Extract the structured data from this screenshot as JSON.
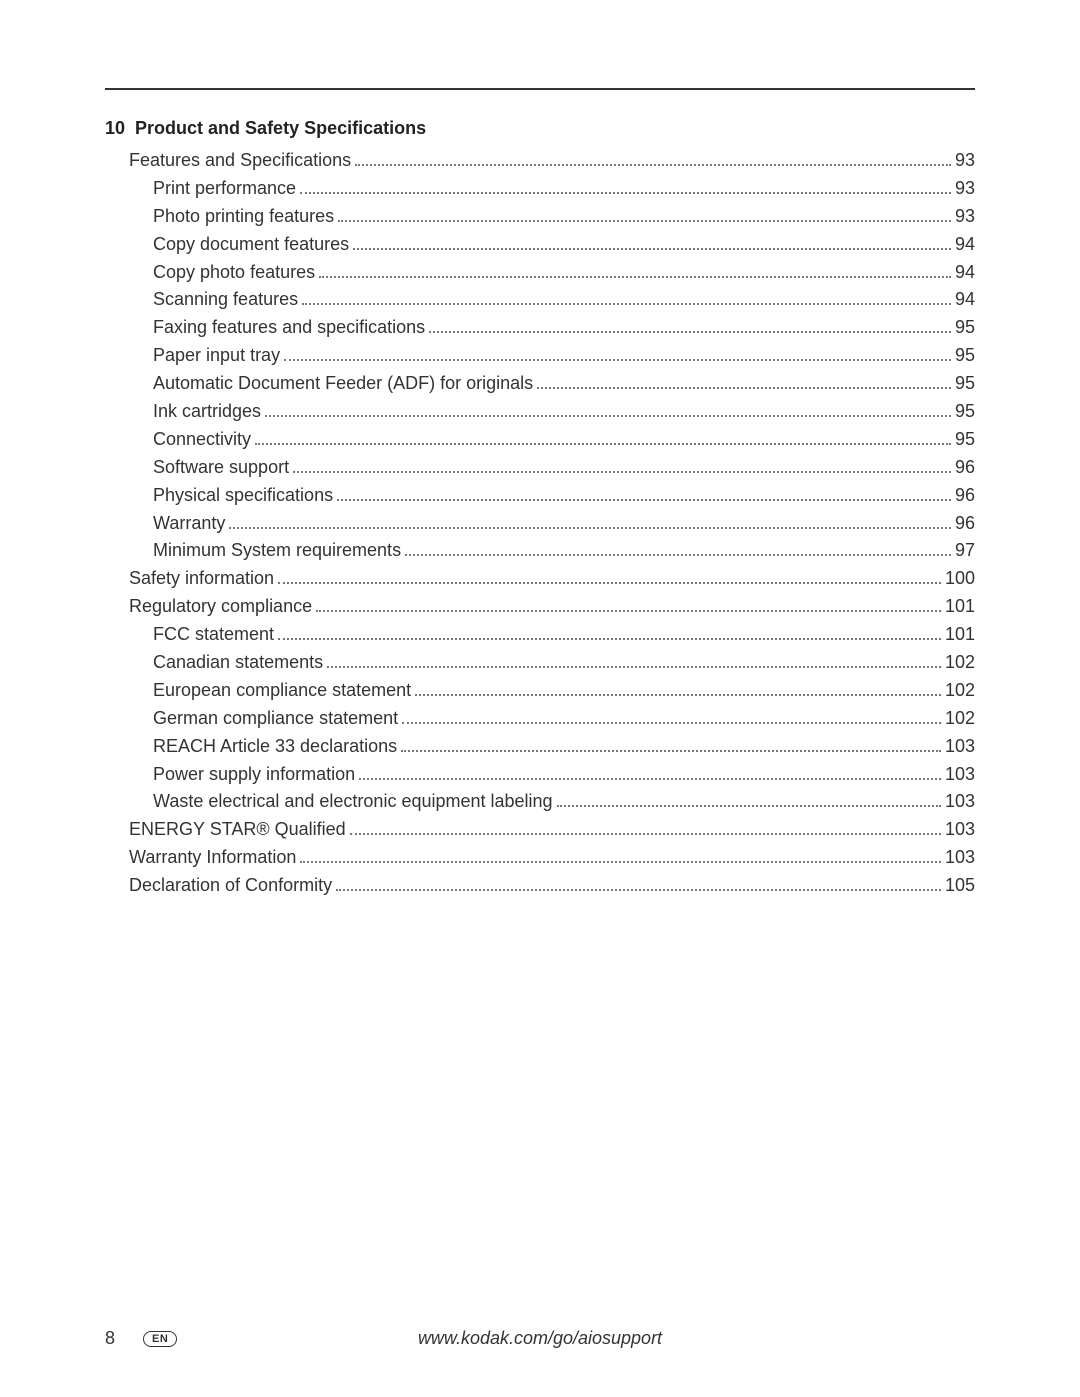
{
  "chapter": {
    "number": "10",
    "title": "Product and Safety Specifications"
  },
  "toc": [
    {
      "label": "Features and Specifications",
      "page": "93",
      "indent": 1
    },
    {
      "label": "Print performance",
      "page": "93",
      "indent": 2
    },
    {
      "label": "Photo printing features",
      "page": "93",
      "indent": 2
    },
    {
      "label": "Copy document features",
      "page": "94",
      "indent": 2
    },
    {
      "label": "Copy photo features",
      "page": "94",
      "indent": 2
    },
    {
      "label": "Scanning features",
      "page": "94",
      "indent": 2
    },
    {
      "label": "Faxing features and specifications",
      "page": "95",
      "indent": 2
    },
    {
      "label": "Paper input tray",
      "page": "95",
      "indent": 2
    },
    {
      "label": "Automatic Document Feeder (ADF) for originals",
      "page": "95",
      "indent": 2
    },
    {
      "label": "Ink cartridges",
      "page": "95",
      "indent": 2
    },
    {
      "label": "Connectivity",
      "page": "95",
      "indent": 2
    },
    {
      "label": "Software support",
      "page": "96",
      "indent": 2
    },
    {
      "label": "Physical specifications",
      "page": "96",
      "indent": 2
    },
    {
      "label": "Warranty",
      "page": "96",
      "indent": 2
    },
    {
      "label": "Minimum System requirements",
      "page": "97",
      "indent": 2
    },
    {
      "label": "Safety information",
      "page": "100",
      "indent": 1
    },
    {
      "label": "Regulatory compliance",
      "page": "101",
      "indent": 1
    },
    {
      "label": "FCC statement",
      "page": "101",
      "indent": 2
    },
    {
      "label": "Canadian statements",
      "page": "102",
      "indent": 2
    },
    {
      "label": "European compliance statement",
      "page": "102",
      "indent": 2
    },
    {
      "label": "German compliance statement",
      "page": "102",
      "indent": 2
    },
    {
      "label": "REACH Article 33 declarations",
      "page": "103",
      "indent": 2
    },
    {
      "label": "Power supply information",
      "page": "103",
      "indent": 2
    },
    {
      "label": "Waste electrical and electronic equipment labeling",
      "page": "103",
      "indent": 2
    },
    {
      "label": "ENERGY STAR® Qualified",
      "page": "103",
      "indent": 1
    },
    {
      "label": "Warranty Information",
      "page": "103",
      "indent": 1
    },
    {
      "label": "Declaration of Conformity",
      "page": "105",
      "indent": 1
    }
  ],
  "footer": {
    "page_number": "8",
    "lang": "EN",
    "url": "www.kodak.com/go/aiosupport"
  }
}
